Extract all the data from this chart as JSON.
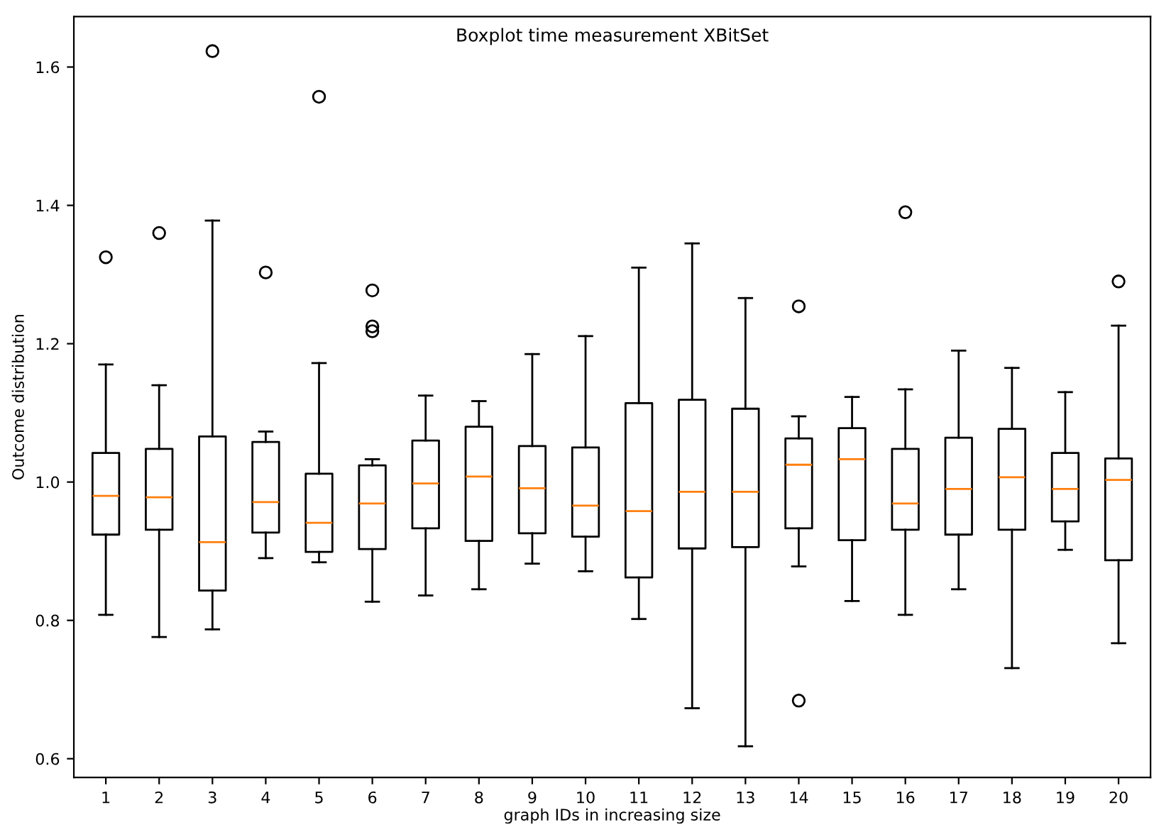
{
  "chart_data": {
    "type": "box",
    "title": "Boxplot time measurement XBitSet",
    "xlabel": "graph IDs in increasing size",
    "ylabel": "Outcome distribution",
    "categories": [
      "1",
      "2",
      "3",
      "4",
      "5",
      "6",
      "7",
      "8",
      "9",
      "10",
      "11",
      "12",
      "13",
      "14",
      "15",
      "16",
      "17",
      "18",
      "19",
      "20"
    ],
    "ylim": [
      0.573,
      1.673
    ],
    "yticks": [
      0.6,
      0.8,
      {
        "value": 1.0,
        "label": "1.0"
      },
      1.2,
      1.4,
      1.6
    ],
    "boxes": [
      {
        "low": 0.808,
        "q1": 0.924,
        "median": 0.98,
        "q3": 1.042,
        "high": 1.17,
        "outliers": [
          1.325
        ]
      },
      {
        "low": 0.776,
        "q1": 0.931,
        "median": 0.978,
        "q3": 1.048,
        "high": 1.14,
        "outliers": [
          1.36
        ]
      },
      {
        "low": 0.787,
        "q1": 0.843,
        "median": 0.913,
        "q3": 1.066,
        "high": 1.378,
        "outliers": [
          1.623
        ]
      },
      {
        "low": 0.89,
        "q1": 0.927,
        "median": 0.971,
        "q3": 1.058,
        "high": 1.073,
        "outliers": [
          1.303
        ]
      },
      {
        "low": 0.884,
        "q1": 0.899,
        "median": 0.941,
        "q3": 1.012,
        "high": 1.172,
        "outliers": [
          1.557
        ]
      },
      {
        "low": 0.827,
        "q1": 0.903,
        "median": 0.969,
        "q3": 1.024,
        "high": 1.033,
        "outliers": [
          1.277,
          1.225,
          1.218
        ]
      },
      {
        "low": 0.836,
        "q1": 0.933,
        "median": 0.998,
        "q3": 1.06,
        "high": 1.125
      },
      {
        "low": 0.845,
        "q1": 0.915,
        "median": 1.008,
        "q3": 1.08,
        "high": 1.117
      },
      {
        "low": 0.882,
        "q1": 0.926,
        "median": 0.991,
        "q3": 1.052,
        "high": 1.185
      },
      {
        "low": 0.871,
        "q1": 0.921,
        "median": 0.966,
        "q3": 1.05,
        "high": 1.211
      },
      {
        "low": 0.802,
        "q1": 0.862,
        "median": 0.958,
        "q3": 1.114,
        "high": 1.31
      },
      {
        "low": 0.673,
        "q1": 0.904,
        "median": 0.986,
        "q3": 1.119,
        "high": 1.345
      },
      {
        "low": 0.618,
        "q1": 0.906,
        "median": 0.986,
        "q3": 1.106,
        "high": 1.266
      },
      {
        "low": 0.878,
        "q1": 0.933,
        "median": 1.025,
        "q3": 1.063,
        "high": 1.095,
        "outliers": [
          1.254,
          0.684
        ]
      },
      {
        "low": 0.828,
        "q1": 0.916,
        "median": 1.033,
        "q3": 1.078,
        "high": 1.123
      },
      {
        "low": 0.808,
        "q1": 0.931,
        "median": 0.969,
        "q3": 1.048,
        "high": 1.134,
        "outliers": [
          1.39
        ]
      },
      {
        "low": 0.845,
        "q1": 0.924,
        "median": 0.99,
        "q3": 1.064,
        "high": 1.19
      },
      {
        "low": 0.731,
        "q1": 0.931,
        "median": 1.007,
        "q3": 1.077,
        "high": 1.165
      },
      {
        "low": 0.902,
        "q1": 0.943,
        "median": 0.99,
        "q3": 1.042,
        "high": 1.13
      },
      {
        "low": 0.767,
        "q1": 0.887,
        "median": 1.003,
        "q3": 1.034,
        "high": 1.226,
        "outliers": [
          1.29
        ]
      }
    ]
  }
}
